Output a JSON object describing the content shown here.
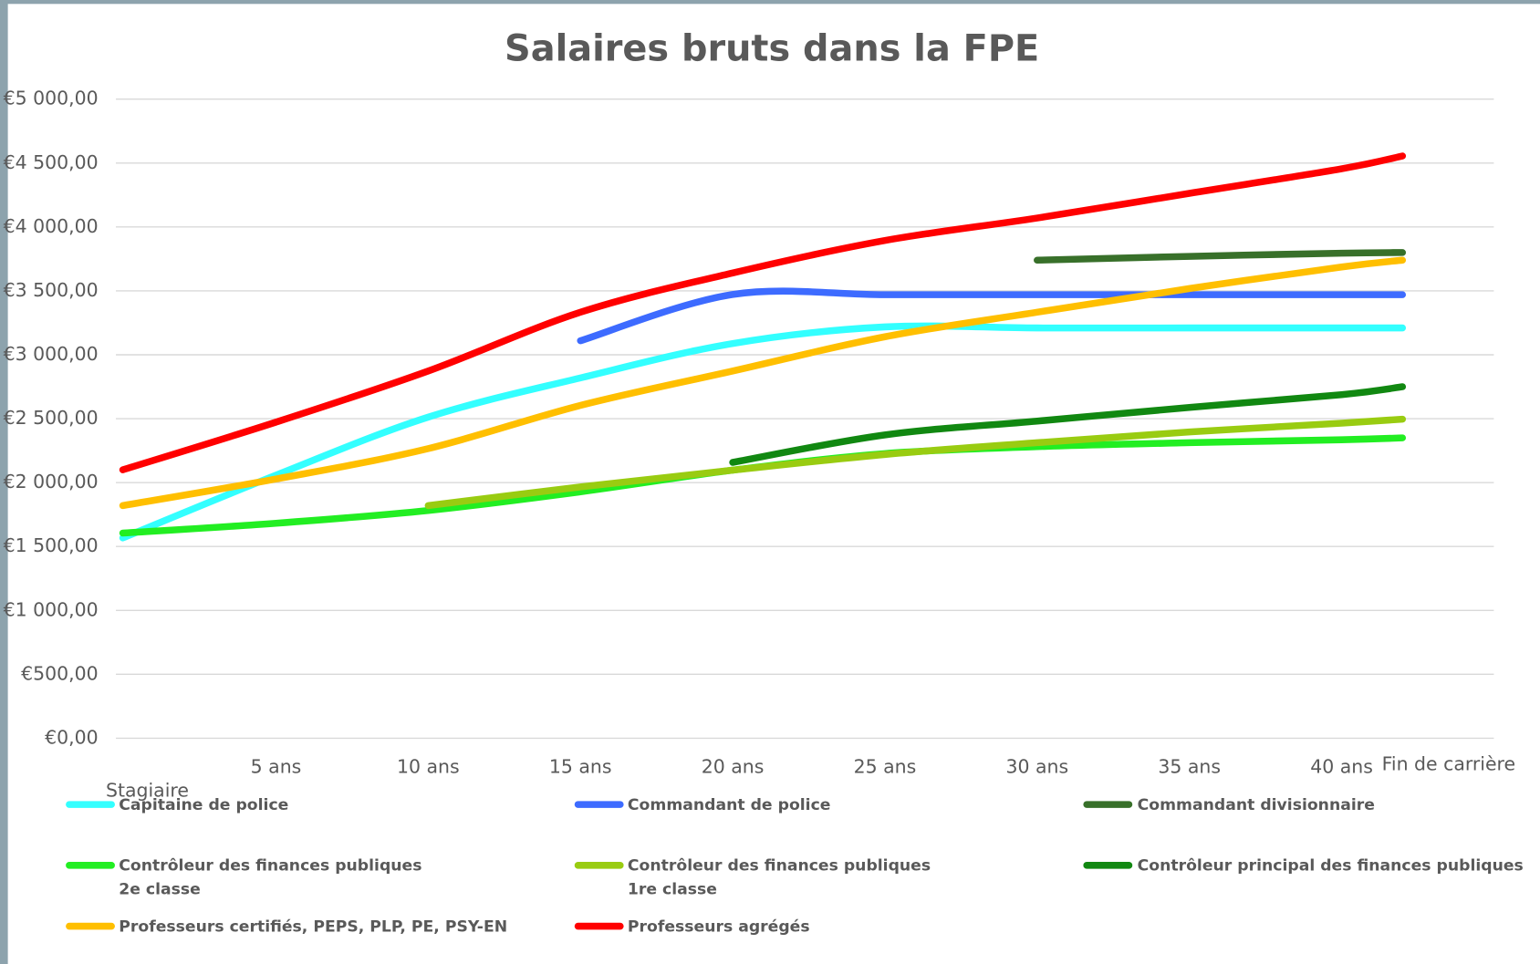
{
  "chart_data": {
    "type": "line",
    "title": "Salaires bruts dans la FPE",
    "categories": [
      "Stagiaire",
      "5 ans",
      "10 ans",
      "15 ans",
      "20 ans",
      "25 ans",
      "30 ans",
      "35 ans",
      "40 ans",
      "Fin de carrière"
    ],
    "ylim": [
      0,
      5000
    ],
    "yticks": [
      {
        "value": 0,
        "label": "€0,00"
      },
      {
        "value": 500,
        "label": "€500,00"
      },
      {
        "value": 1000,
        "label": "€1 000,00"
      },
      {
        "value": 1500,
        "label": "€1 500,00"
      },
      {
        "value": 2000,
        "label": "€2 000,00"
      },
      {
        "value": 2500,
        "label": "€2 500,00"
      },
      {
        "value": 3000,
        "label": "€3 000,00"
      },
      {
        "value": 3500,
        "label": "€3 500,00"
      },
      {
        "value": 4000,
        "label": "€4 000,00"
      },
      {
        "value": 4500,
        "label": "€4 500,00"
      },
      {
        "value": 5000,
        "label": "€5 000,00"
      }
    ],
    "grid": true,
    "legend": "bottom",
    "series": [
      {
        "name": "Capitaine de police",
        "color": "#33ffff",
        "values": [
          1567,
          2058,
          2512,
          2819,
          3088,
          3218,
          3210,
          3210,
          3210,
          3210
        ]
      },
      {
        "name": "Commandant de police",
        "color": "#3d6bff",
        "values": [
          null,
          null,
          null,
          3110,
          3472,
          3470,
          3470,
          3470,
          3470,
          3470
        ]
      },
      {
        "name": "Commandant divisionnaire",
        "color": "#38702a",
        "values": [
          null,
          null,
          null,
          null,
          null,
          null,
          3740,
          3770,
          3795,
          3800
        ]
      },
      {
        "name": "Contrôleur des finances publiques\n2e classe",
        "color": "#22ee22",
        "values": [
          1605,
          1682,
          1782,
          1928,
          2097,
          2227,
          2281,
          2312,
          2335,
          2350
        ]
      },
      {
        "name": "Contrôleur des finances publiques\n1re classe",
        "color": "#99cc11",
        "values": [
          null,
          null,
          1820,
          1966,
          2097,
          2220,
          2312,
          2396,
          2465,
          2496
        ]
      },
      {
        "name": "Contrôleur principal des finances publiques",
        "color": "#118811",
        "values": [
          null,
          null,
          null,
          null,
          2158,
          2373,
          2481,
          2588,
          2688,
          2750
        ]
      },
      {
        "name": "Professeurs certifiés, PEPS, PLP, PE, PSY-EN",
        "color": "#ffbf00",
        "values": [
          1820,
          2028,
          2266,
          2604,
          2873,
          3141,
          3333,
          3518,
          3687,
          3740
        ]
      },
      {
        "name": "Professeurs agrégés",
        "color": "#ff0000",
        "values": [
          2100,
          2473,
          2873,
          3333,
          3640,
          3894,
          4070,
          4263,
          4455,
          4555
        ]
      }
    ]
  }
}
